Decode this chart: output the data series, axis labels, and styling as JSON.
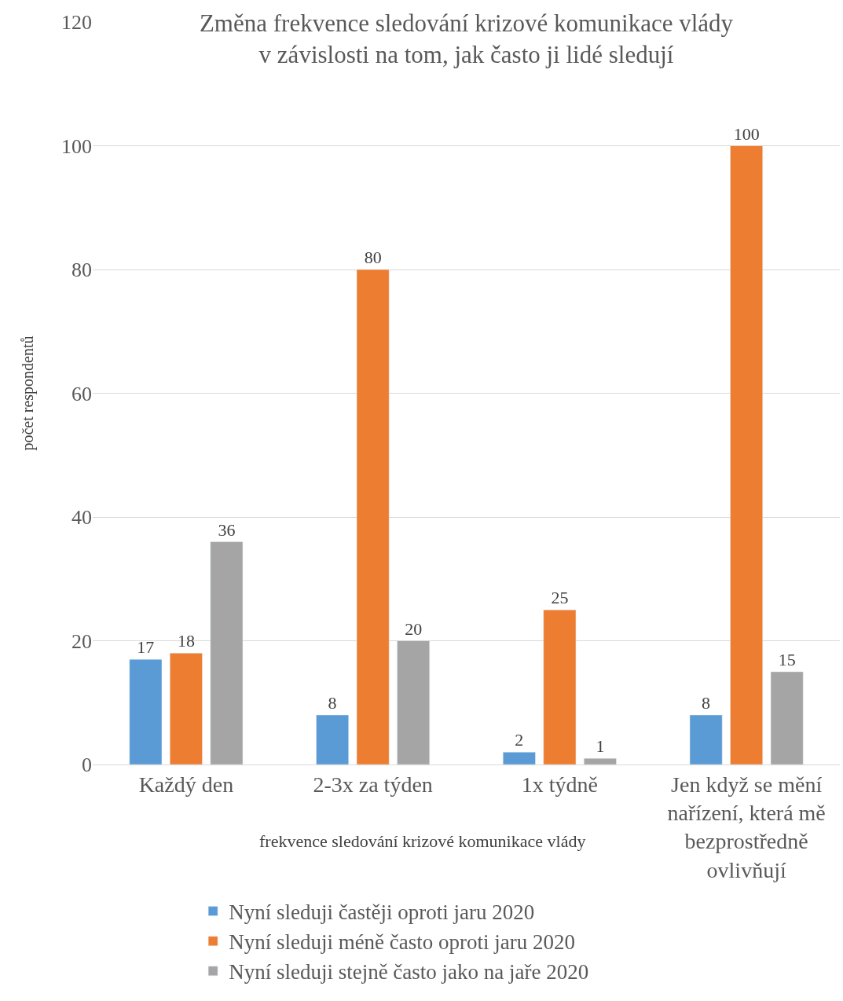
{
  "chart_data": {
    "type": "bar",
    "title": "Změna frekvence sledování krizové komunikace vlády\nv závislosti na tom, jak často ji lidé sledují",
    "xlabel": "frekvence sledování krizové komunikace vlády",
    "ylabel": "počet respondentů",
    "categories": [
      "Každý den",
      "2-3x za týden",
      "1x týdně",
      "Jen když se mění nařízení, která mě bezprostředně ovlivňují"
    ],
    "series": [
      {
        "name": "Nyní sleduji častěji oproti jaru 2020",
        "color": "#5b9bd5",
        "values": [
          17,
          8,
          2,
          8
        ]
      },
      {
        "name": "Nyní sleduji méně často oproti jaru 2020",
        "color": "#ed7d31",
        "values": [
          18,
          80,
          25,
          100
        ]
      },
      {
        "name": "Nyní sleduji stejně často jako na jaře 2020",
        "color": "#a5a5a5",
        "values": [
          36,
          20,
          1,
          15
        ]
      }
    ],
    "ylim": [
      0,
      120
    ],
    "yticks": [
      0,
      20,
      40,
      60,
      80,
      100,
      120
    ],
    "grid": "y",
    "legend": "bottom",
    "data_labels": true
  }
}
